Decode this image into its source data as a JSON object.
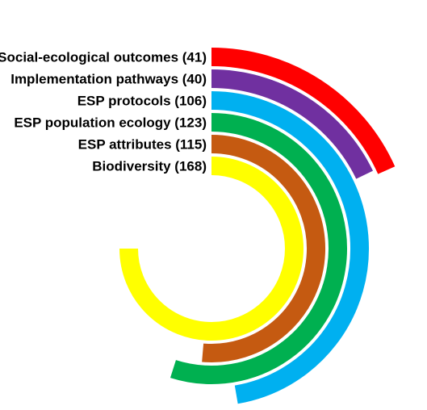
{
  "chart_data": {
    "type": "radial-bar",
    "max_value": 168,
    "full_circle_value": 224,
    "series": [
      {
        "label": "Social-ecological outcomes (41)",
        "value": 41,
        "color": "#FF0000"
      },
      {
        "label": "Implementation pathways (40)",
        "value": 40,
        "color": "#7030A0"
      },
      {
        "label": "ESP protocols (106)",
        "value": 106,
        "color": "#00B0F0"
      },
      {
        "label": "ESP population ecology (123)",
        "value": 123,
        "color": "#00B050"
      },
      {
        "label": "ESP attributes (115)",
        "value": 115,
        "color": "#C55A11"
      },
      {
        "label": "Biodiversity (168)",
        "value": 168,
        "color": "#FFFF00"
      }
    ]
  }
}
